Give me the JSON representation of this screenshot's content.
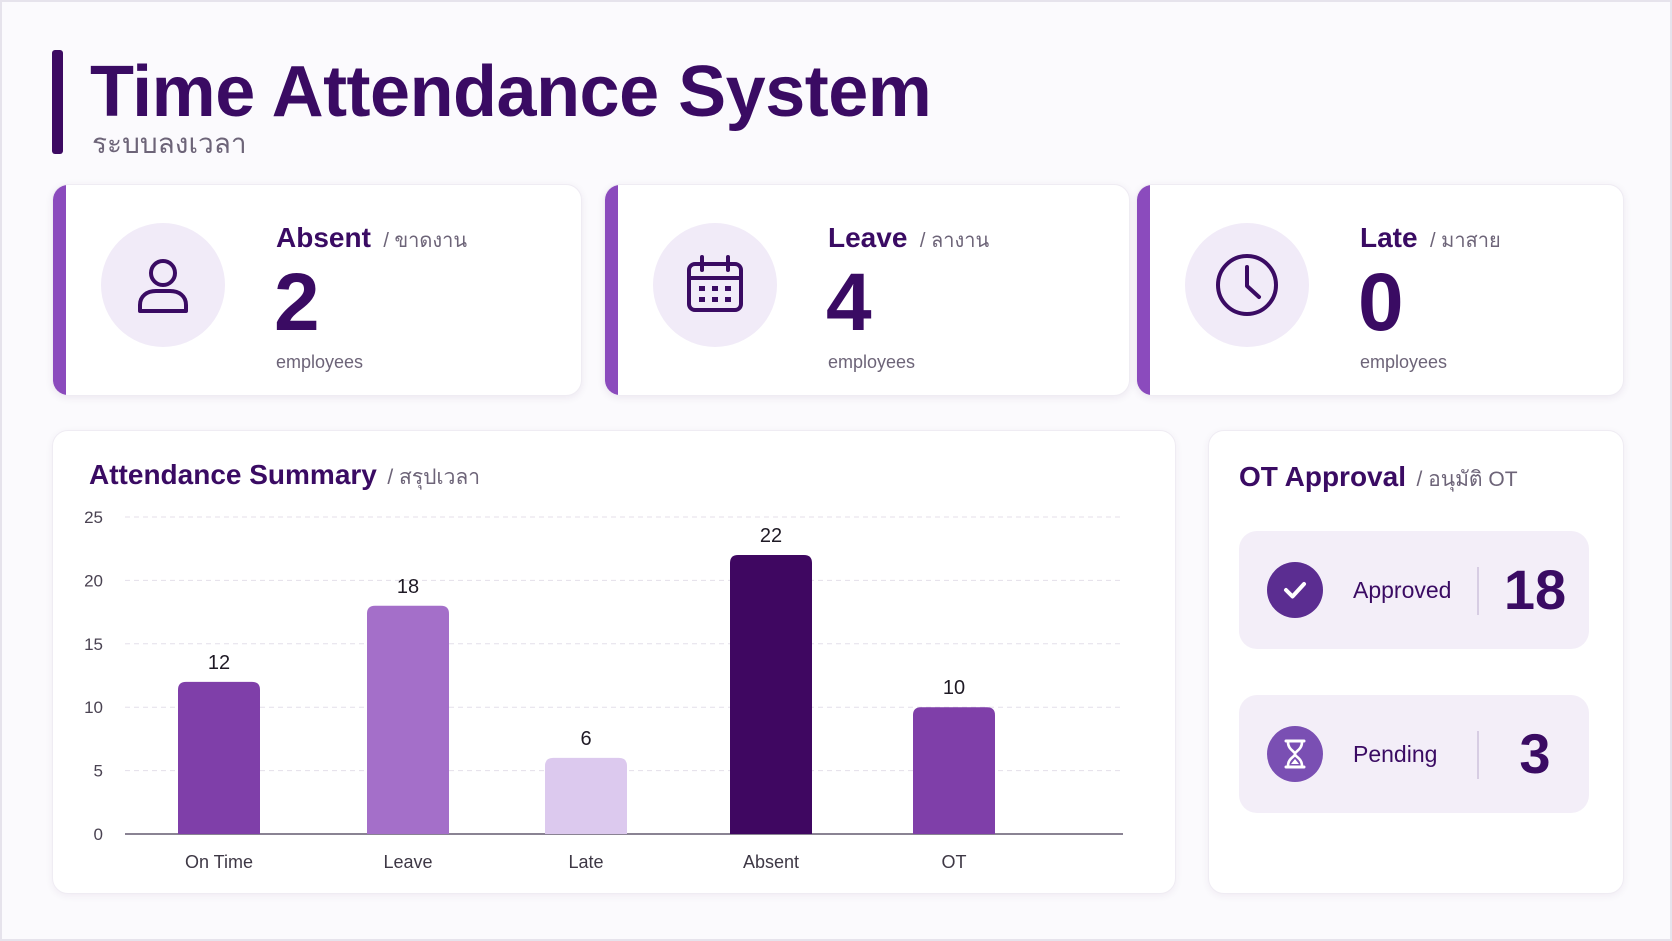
{
  "header": {
    "title": "Time Attendance System",
    "subtitle": "ระบบลงเวลา"
  },
  "stats": [
    {
      "label": "Absent",
      "label_th": "/ ขาดงาน",
      "value": "2",
      "unit": "employees",
      "icon": "user-icon"
    },
    {
      "label": "Leave",
      "label_th": "/ ลางาน",
      "value": "4",
      "unit": "employees",
      "icon": "calendar-icon"
    },
    {
      "label": "Late",
      "label_th": "/ มาสาย",
      "value": "0",
      "unit": "employees",
      "icon": "clock-icon"
    }
  ],
  "summary": {
    "title": "Attendance Summary",
    "subtitle": "/ สรุปเวลา"
  },
  "ot": {
    "title": "OT Approval",
    "subtitle": "/ อนุมัติ OT",
    "rows": [
      {
        "label": "Approved",
        "value": "18",
        "icon": "check-icon",
        "icon_color": "#5b2d91"
      },
      {
        "label": "Pending",
        "value": "3",
        "icon": "hourglass-icon",
        "icon_color": "#7a4fb3"
      }
    ]
  },
  "colors": {
    "primary": "#3a0b63",
    "accent": "#8b4bbd",
    "muted": "#6d6478"
  },
  "chart_data": {
    "type": "bar",
    "title": "Attendance Summary",
    "categories": [
      "On Time",
      "Leave",
      "Late",
      "Absent",
      "OT"
    ],
    "values": [
      12,
      18,
      6,
      22,
      10
    ],
    "bar_colors": [
      "#7f3fa9",
      "#a46fc9",
      "#dcc9ee",
      "#3f0761",
      "#7f3fa9"
    ],
    "ylim": [
      0,
      25
    ],
    "yticks": [
      0,
      5,
      10,
      15,
      20,
      25
    ],
    "xlabel": "",
    "ylabel": "",
    "grid": true,
    "data_labels": true
  }
}
